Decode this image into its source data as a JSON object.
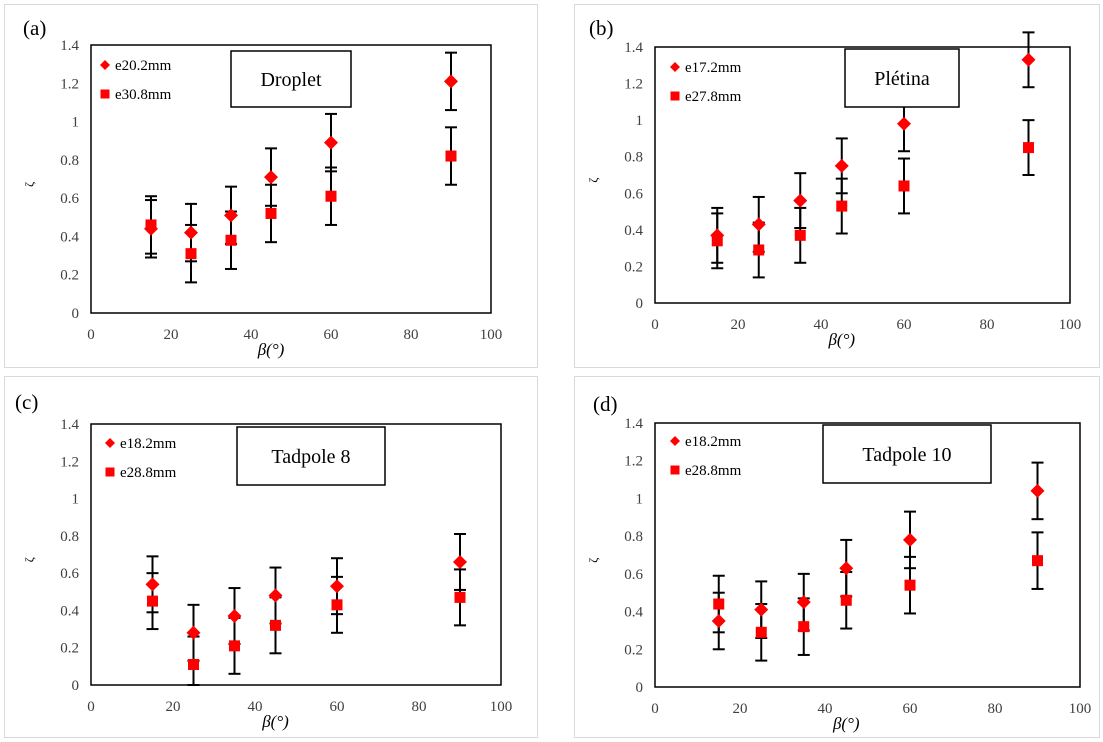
{
  "chart_data": [
    {
      "type": "scatter",
      "panel_label": "(a)",
      "name_box": "Droplet",
      "xlabel": "β(°)",
      "ylabel": "ζ",
      "xlim": [
        0,
        100
      ],
      "ylim": [
        0,
        1.4
      ],
      "xticks": [
        "0",
        "20",
        "40",
        "60",
        "80",
        "100"
      ],
      "yticks": [
        "0",
        "0.2",
        "0.4",
        "0.6",
        "0.8",
        "1",
        "1.2",
        "1.4"
      ],
      "legend_position": "top-left",
      "x": [
        15,
        25,
        35,
        45,
        60,
        90
      ],
      "series": [
        {
          "name": "e20.2mm",
          "marker": "diamond",
          "color": "#ff0000",
          "values": [
            0.44,
            0.42,
            0.51,
            0.71,
            0.89,
            1.21
          ],
          "error": 0.15
        },
        {
          "name": "e30.8mm",
          "marker": "square",
          "color": "#ff0000",
          "values": [
            0.46,
            0.31,
            0.38,
            0.52,
            0.61,
            0.82
          ],
          "error": 0.15
        }
      ]
    },
    {
      "type": "scatter",
      "panel_label": "(b)",
      "name_box": "Plétina",
      "xlabel": "β(°)",
      "ylabel": "ζ",
      "xlim": [
        0,
        100
      ],
      "ylim": [
        0,
        1.4
      ],
      "xticks": [
        "0",
        "20",
        "40",
        "60",
        "80",
        "100"
      ],
      "yticks": [
        "0",
        "0.2",
        "0.4",
        "0.6",
        "0.8",
        "1",
        "1.2",
        "1.4"
      ],
      "legend_position": "top-left",
      "x": [
        15,
        25,
        35,
        45,
        60,
        90
      ],
      "series": [
        {
          "name": "e17.2mm",
          "marker": "diamond",
          "color": "#ff0000",
          "values": [
            0.37,
            0.43,
            0.56,
            0.75,
            0.98,
            1.33
          ],
          "error": 0.15
        },
        {
          "name": "e27.8mm",
          "marker": "square",
          "color": "#ff0000",
          "values": [
            0.34,
            0.29,
            0.37,
            0.53,
            0.64,
            0.85
          ],
          "error": 0.15
        }
      ]
    },
    {
      "type": "scatter",
      "panel_label": "(c)",
      "name_box": "Tadpole 8",
      "xlabel": "β(°)",
      "ylabel": "ζ",
      "xlim": [
        0,
        100
      ],
      "ylim": [
        0,
        1.4
      ],
      "xticks": [
        "0",
        "20",
        "40",
        "60",
        "80",
        "100"
      ],
      "yticks": [
        "0",
        "0.2",
        "0.4",
        "0.6",
        "0.8",
        "1",
        "1.2",
        "1.4"
      ],
      "legend_position": "top-left",
      "x": [
        15,
        25,
        35,
        45,
        60,
        90
      ],
      "series": [
        {
          "name": "e18.2mm",
          "marker": "diamond",
          "color": "#ff0000",
          "values": [
            0.54,
            0.28,
            0.37,
            0.48,
            0.53,
            0.66
          ],
          "error": 0.15
        },
        {
          "name": "e28.8mm",
          "marker": "square",
          "color": "#ff0000",
          "values": [
            0.45,
            0.11,
            0.21,
            0.32,
            0.43,
            0.47
          ],
          "error": 0.15
        }
      ]
    },
    {
      "type": "scatter",
      "panel_label": "(d)",
      "name_box": "Tadpole 10",
      "xlabel": "β(°)",
      "ylabel": "ζ",
      "xlim": [
        0,
        100
      ],
      "ylim": [
        0,
        1.4
      ],
      "xticks": [
        "0",
        "20",
        "40",
        "60",
        "80",
        "100"
      ],
      "yticks": [
        "0",
        "0.2",
        "0.4",
        "0.6",
        "0.8",
        "1",
        "1.2",
        "1.4"
      ],
      "legend_position": "top-left",
      "x": [
        15,
        25,
        35,
        45,
        60,
        90
      ],
      "series": [
        {
          "name": "e18.2mm",
          "marker": "diamond",
          "color": "#ff0000",
          "values": [
            0.35,
            0.41,
            0.45,
            0.63,
            0.78,
            1.04
          ],
          "error": 0.15
        },
        {
          "name": "e28.8mm",
          "marker": "square",
          "color": "#ff0000",
          "values": [
            0.44,
            0.29,
            0.32,
            0.46,
            0.54,
            0.67
          ],
          "error": 0.15
        }
      ]
    }
  ]
}
